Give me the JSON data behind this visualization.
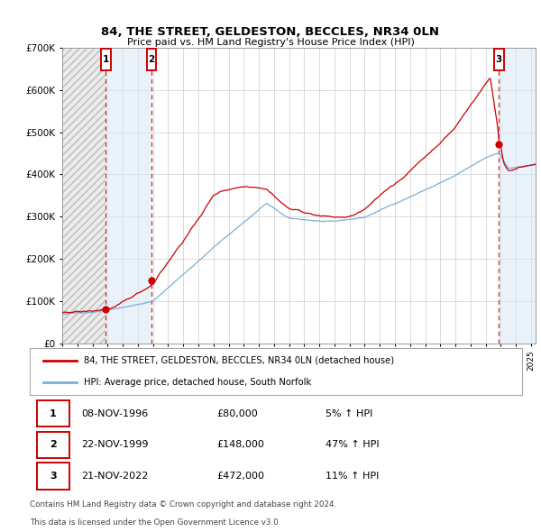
{
  "title1": "84, THE STREET, GELDESTON, BECCLES, NR34 0LN",
  "title2": "Price paid vs. HM Land Registry's House Price Index (HPI)",
  "legend1": "84, THE STREET, GELDESTON, BECCLES, NR34 0LN (detached house)",
  "legend2": "HPI: Average price, detached house, South Norfolk",
  "sale1_date": 1996.88,
  "sale1_price": 80000,
  "sale2_date": 1999.9,
  "sale2_price": 148000,
  "sale3_date": 2022.88,
  "sale3_price": 472000,
  "table_rows": [
    [
      "1",
      "08-NOV-1996",
      "£80,000",
      "5% ↑ HPI"
    ],
    [
      "2",
      "22-NOV-1999",
      "£148,000",
      "47% ↑ HPI"
    ],
    [
      "3",
      "21-NOV-2022",
      "£472,000",
      "11% ↑ HPI"
    ]
  ],
  "footnote1": "Contains HM Land Registry data © Crown copyright and database right 2024.",
  "footnote2": "This data is licensed under the Open Government Licence v3.0.",
  "xmin": 1994.0,
  "xmax": 2025.3,
  "ymin": 0,
  "ymax": 700000,
  "hatch_xmax": 1996.88,
  "shade1_xmin": 1996.88,
  "shade1_xmax": 1999.9,
  "shade2_xmin": 2022.88,
  "shade2_xmax": 2025.3,
  "red_color": "#cc0000",
  "blue_color": "#7bafd4",
  "hatch_face": "#ebebeb",
  "hatch_edge": "#bbbbbb",
  "shade_face": "#d8e8f5"
}
